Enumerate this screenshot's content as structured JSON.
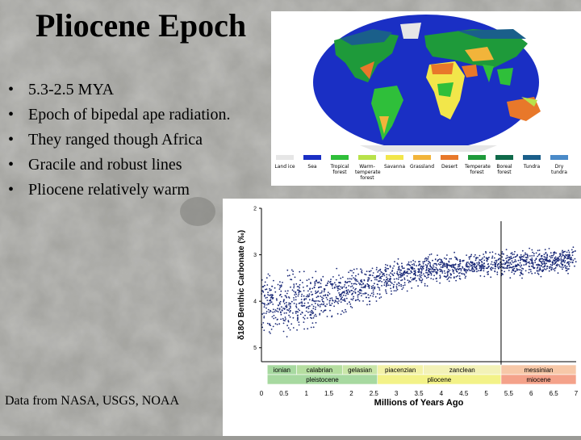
{
  "title": "Pliocene Epoch",
  "bullets": [
    "5.3-2.5 MYA",
    "Epoch of bipedal ape radiation.",
    "They ranged though Africa",
    "Gracile and robust lines",
    "Pliocene relatively warm"
  ],
  "bullet_char": "•",
  "footer": "Data from NASA, USGS, NOAA",
  "map": {
    "legend": [
      {
        "label": "Land ice",
        "color": "#e6e6e6"
      },
      {
        "label": "Sea",
        "color": "#1a2fc4"
      },
      {
        "label": "Tropical forest",
        "color": "#2fbf3a"
      },
      {
        "label": "Warm-temperate forest",
        "color": "#b8e24a"
      },
      {
        "label": "Savanna",
        "color": "#f2e64a"
      },
      {
        "label": "Grassland",
        "color": "#f2b43a"
      },
      {
        "label": "Desert",
        "color": "#e8782a"
      },
      {
        "label": "Temperate forest",
        "color": "#1e9a3a"
      },
      {
        "label": "Boreal forest",
        "color": "#0f6a4a"
      },
      {
        "label": "Tundra",
        "color": "#1a5f8a"
      },
      {
        "label": "Dry tundra",
        "color": "#4a8ac8"
      }
    ]
  },
  "chart_data": {
    "type": "scatter",
    "xlabel": "Millions of Years Ago",
    "ylabel": "δ18O Benthic Carbonate (‰)",
    "x_ticks": [
      "0",
      "0.5",
      "1",
      "1.5",
      "2",
      "2.5",
      "3",
      "3.5",
      "4",
      "4.5",
      "5",
      "5.5",
      "6",
      "6.5",
      "7"
    ],
    "y_ticks": [
      "2",
      "3",
      "4",
      "5"
    ],
    "xlim": [
      0,
      7
    ],
    "ylim": [
      2,
      5.3
    ],
    "y_inverted": true,
    "series": [
      {
        "x": [
          0,
          0.5,
          1,
          1.5,
          2,
          2.5,
          3,
          3.5,
          4,
          4.5,
          5,
          5.5,
          6,
          6.5,
          7
        ],
        "y": [
          4.1,
          4.05,
          4.0,
          3.85,
          3.75,
          3.6,
          3.45,
          3.35,
          3.3,
          3.25,
          3.2,
          3.2,
          3.2,
          3.15,
          3.05
        ],
        "spread": [
          0.5,
          0.5,
          0.45,
          0.35,
          0.3,
          0.3,
          0.25,
          0.2,
          0.2,
          0.18,
          0.18,
          0.2,
          0.2,
          0.2,
          0.2
        ]
      }
    ],
    "marker_x": 5.33,
    "stages": [
      {
        "label": "ionian",
        "start": 0.13,
        "end": 0.78,
        "color": "#a7d9a0"
      },
      {
        "label": "calabrian",
        "start": 0.78,
        "end": 1.8,
        "color": "#b5dea0"
      },
      {
        "label": "gelasian",
        "start": 1.8,
        "end": 2.58,
        "color": "#c9e6a8"
      },
      {
        "label": "piacenzian",
        "start": 2.58,
        "end": 3.6,
        "color": "#f3f2a8"
      },
      {
        "label": "zanclean",
        "start": 3.6,
        "end": 5.33,
        "color": "#f3f2b8"
      },
      {
        "label": "messinian",
        "start": 5.33,
        "end": 7.0,
        "color": "#f7c8a8"
      }
    ],
    "epochs": [
      {
        "label": "pleistocene",
        "start": 0.13,
        "end": 2.58,
        "color": "#a7d9a0"
      },
      {
        "label": "pliocene",
        "start": 2.58,
        "end": 5.33,
        "color": "#f3f288"
      },
      {
        "label": "miocene",
        "start": 5.33,
        "end": 7.0,
        "color": "#f4a28a"
      }
    ]
  }
}
